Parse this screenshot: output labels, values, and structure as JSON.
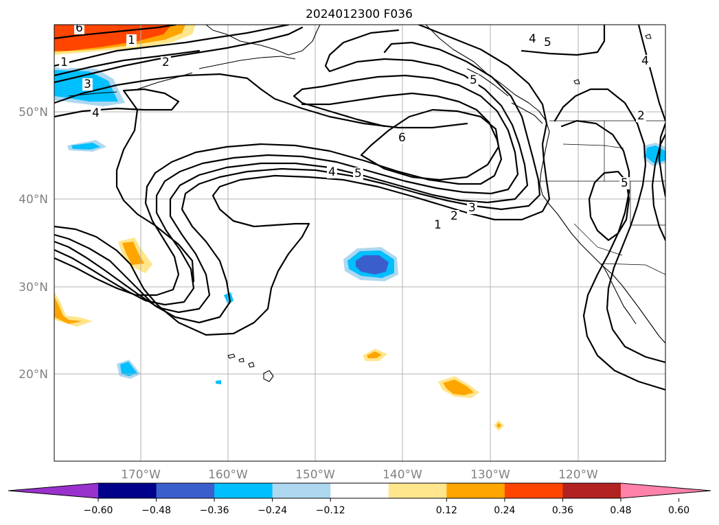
{
  "title": "2024012300 F036",
  "map": {
    "lon_range": [
      -180,
      -110
    ],
    "lat_range": [
      10,
      60
    ],
    "lat_ticks": [
      "50°N",
      "40°N",
      "30°N",
      "20°N"
    ],
    "lon_ticks": [
      "170°W",
      "160°W",
      "150°W",
      "140°W",
      "130°W",
      "120°W"
    ],
    "contour_labels": [
      "1",
      "2",
      "3",
      "4",
      "5",
      "6",
      "1",
      "2",
      "3",
      "4",
      "5",
      "6",
      "4",
      "5",
      "1",
      "2",
      "5",
      "4"
    ]
  },
  "colorbar": {
    "ticks": [
      "−0.60",
      "−0.48",
      "−0.36",
      "−0.24",
      "−0.12",
      "0.12",
      "0.24",
      "0.36",
      "0.48",
      "0.60"
    ],
    "colors": [
      "#9932cc",
      "#00008b",
      "#3a5fcd",
      "#00bfff",
      "#add8f0",
      "#ffffff",
      "#ffe68c",
      "#ffa500",
      "#ff4500",
      "#b22222",
      "#ff82ab"
    ]
  }
}
